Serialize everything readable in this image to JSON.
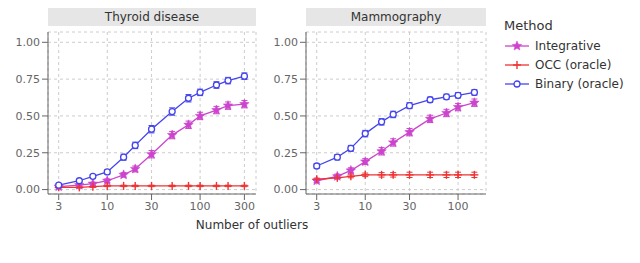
{
  "chart_data": [
    {
      "type": "line",
      "title": "Thyroid disease",
      "x_label": "Number of outliers",
      "log": "x",
      "grid": true,
      "x": [
        3,
        5,
        7,
        10,
        15,
        20,
        30,
        50,
        75,
        100,
        150,
        200,
        300
      ],
      "xlim": [
        2.3,
        400
      ],
      "xticks": [
        3,
        10,
        30,
        100,
        300
      ],
      "ylim": [
        -0.03,
        1.07
      ],
      "yticks": [
        {
          "value": 0.0,
          "label": "0.00"
        },
        {
          "value": 0.25,
          "label": "0.25"
        },
        {
          "value": 0.5,
          "label": "0.50"
        },
        {
          "value": 0.75,
          "label": "0.75"
        },
        {
          "value": 1.0,
          "label": "1.00"
        }
      ],
      "series": [
        {
          "name": "Integrative",
          "color": "#CC44CC",
          "marker": "star",
          "values": [
            0.02,
            0.03,
            0.04,
            0.06,
            0.1,
            0.14,
            0.24,
            0.37,
            0.44,
            0.5,
            0.54,
            0.57,
            0.58
          ],
          "errors": [
            0.005,
            0.005,
            0.008,
            0.012,
            0.015,
            0.02,
            0.025,
            0.025,
            0.025,
            0.025,
            0.025,
            0.025,
            0.025
          ]
        },
        {
          "name": "OCC (oracle)",
          "color": "#EE3333",
          "marker": "plus",
          "values": [
            0.015,
            0.015,
            0.02,
            0.025,
            0.025,
            0.025,
            0.025,
            0.025,
            0.025,
            0.025,
            0.025,
            0.025,
            0.025
          ],
          "errors": [
            0.005,
            0.005,
            0.005,
            0.005,
            0.005,
            0.005,
            0.005,
            0.005,
            0.005,
            0.005,
            0.005,
            0.005,
            0.005
          ]
        },
        {
          "name": "Binary (oracle)",
          "color": "#4444EE",
          "marker": "circle",
          "values": [
            0.03,
            0.06,
            0.09,
            0.12,
            0.22,
            0.3,
            0.41,
            0.53,
            0.62,
            0.66,
            0.71,
            0.74,
            0.77
          ],
          "errors": [
            0.008,
            0.01,
            0.012,
            0.015,
            0.02,
            0.022,
            0.025,
            0.025,
            0.025,
            0.022,
            0.022,
            0.022,
            0.022
          ]
        }
      ]
    },
    {
      "type": "line",
      "title": "Mammography",
      "log": "x",
      "grid": true,
      "legend": "right",
      "legend_title": "Method",
      "x": [
        3,
        5,
        7,
        10,
        15,
        20,
        30,
        50,
        75,
        100,
        150
      ],
      "xlim": [
        2.3,
        200
      ],
      "xticks": [
        3,
        10,
        30,
        100
      ],
      "ylim": [
        -0.03,
        1.07
      ],
      "yticks": [
        {
          "value": 0.0,
          "label": "0.00"
        },
        {
          "value": 0.25,
          "label": "0.25"
        },
        {
          "value": 0.5,
          "label": "0.50"
        },
        {
          "value": 0.75,
          "label": "0.75"
        },
        {
          "value": 1.0,
          "label": "1.00"
        }
      ],
      "series": [
        {
          "name": "Integrative",
          "color": "#CC44CC",
          "marker": "star",
          "values": [
            0.06,
            0.09,
            0.13,
            0.19,
            0.26,
            0.32,
            0.39,
            0.48,
            0.52,
            0.56,
            0.59
          ],
          "errors": [
            0.01,
            0.015,
            0.018,
            0.02,
            0.025,
            0.025,
            0.025,
            0.025,
            0.025,
            0.025,
            0.025
          ]
        },
        {
          "name": "OCC (oracle)",
          "color": "#EE3333",
          "marker": "plus",
          "values": [
            0.07,
            0.08,
            0.09,
            0.1,
            0.1,
            0.1,
            0.1,
            0.1,
            0.1,
            0.1,
            0.1
          ],
          "errors": [
            0.008,
            0.008,
            0.01,
            0.012,
            0.015,
            0.015,
            0.018,
            0.018,
            0.018,
            0.018,
            0.018
          ]
        },
        {
          "name": "Binary (oracle)",
          "color": "#4444EE",
          "marker": "circle",
          "values": [
            0.16,
            0.22,
            0.28,
            0.38,
            0.46,
            0.51,
            0.57,
            0.61,
            0.63,
            0.64,
            0.66
          ],
          "errors": [
            0.015,
            0.018,
            0.02,
            0.022,
            0.022,
            0.022,
            0.02,
            0.018,
            0.018,
            0.018,
            0.018
          ]
        }
      ]
    }
  ]
}
